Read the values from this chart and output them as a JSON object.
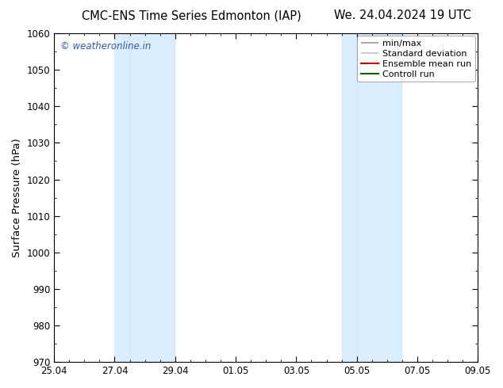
{
  "title_left": "CMC-ENS Time Series Edmonton (IAP)",
  "title_right": "We. 24.04.2024 19 UTC",
  "ylabel": "Surface Pressure (hPa)",
  "ylim": [
    970,
    1060
  ],
  "yticks": [
    970,
    980,
    990,
    1000,
    1010,
    1020,
    1030,
    1040,
    1050,
    1060
  ],
  "xlim": [
    0,
    14
  ],
  "xtick_labels": [
    "25.04",
    "27.04",
    "29.04",
    "01.05",
    "03.05",
    "05.05",
    "07.05",
    "09.05"
  ],
  "xtick_positions": [
    0,
    2,
    4,
    6,
    8,
    10,
    12,
    14
  ],
  "shaded_bands": [
    {
      "x_start": 2.0,
      "x_end": 2.5
    },
    {
      "x_start": 2.5,
      "x_end": 4.0
    },
    {
      "x_start": 9.5,
      "x_end": 10.0
    },
    {
      "x_start": 10.0,
      "x_end": 11.5
    }
  ],
  "shaded_color": "#daeeff",
  "shaded_edge_color": "#c5dff0",
  "background_color": "#ffffff",
  "watermark_text": "© weatheronline.in",
  "watermark_color": "#3355bb",
  "legend_items": [
    {
      "label": "min/max",
      "color": "#aaaaaa",
      "style": "hline"
    },
    {
      "label": "Standard deviation",
      "color": "#cccccc",
      "style": "hline"
    },
    {
      "label": "Ensemble mean run",
      "color": "#cc0000",
      "style": "line"
    },
    {
      "label": "Controll run",
      "color": "#006600",
      "style": "line"
    }
  ],
  "spine_color": "#000000",
  "tick_label_fontsize": 8.5,
  "axis_label_fontsize": 9.5,
  "title_fontsize": 10.5,
  "watermark_fontsize": 8.5,
  "legend_fontsize": 8.0
}
